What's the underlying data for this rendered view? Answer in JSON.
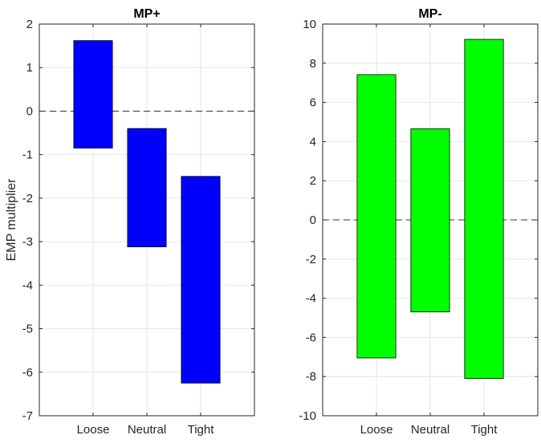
{
  "chart_data": [
    {
      "type": "bar",
      "subtype": "floating-range",
      "title": "MP+",
      "xlabel": "",
      "ylabel": "EMP multiplier",
      "categories": [
        "Loose",
        "Neutral",
        "Tight"
      ],
      "ranges": [
        [
          -0.85,
          1.62
        ],
        [
          -3.12,
          -0.4
        ],
        [
          -6.25,
          -1.5
        ]
      ],
      "ylim": [
        -7,
        2
      ],
      "yticks": [
        "2",
        "1",
        "0",
        "-1",
        "-2",
        "-3",
        "-4",
        "-5",
        "-6",
        "-7"
      ],
      "color": "#0000ff",
      "reference_line": 0,
      "grid": true
    },
    {
      "type": "bar",
      "subtype": "floating-range",
      "title": "MP-",
      "xlabel": "",
      "ylabel": "",
      "categories": [
        "Loose",
        "Neutral",
        "Tight"
      ],
      "ranges": [
        [
          -7.05,
          7.42
        ],
        [
          -4.7,
          4.65
        ],
        [
          -8.1,
          9.22
        ]
      ],
      "ylim": [
        -10,
        10
      ],
      "yticks": [
        "10",
        "8",
        "6",
        "4",
        "2",
        "0",
        "-2",
        "-4",
        "-6",
        "-8",
        "-10"
      ],
      "color": "#00ff00",
      "reference_line": 0,
      "grid": true
    }
  ]
}
